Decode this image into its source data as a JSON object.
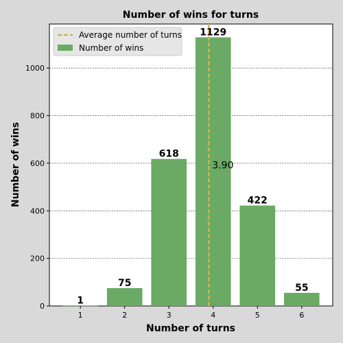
{
  "chart_data": {
    "type": "bar",
    "title": "Number of wins for turns",
    "xlabel": "Number of turns",
    "ylabel": "Number of wins",
    "categories": [
      1,
      2,
      3,
      4,
      5,
      6
    ],
    "values": [
      1,
      75,
      618,
      1129,
      422,
      55
    ],
    "data_labels": [
      "1",
      "75",
      "618",
      "1129",
      "422",
      "55"
    ],
    "ylim": [
      0,
      1185
    ],
    "yticks": [
      0,
      200,
      400,
      600,
      800,
      1000
    ],
    "xlim": [
      0.3,
      6.7
    ],
    "grid": "y, dashed",
    "average_line": {
      "x": 3.9,
      "label": "3.90"
    },
    "legend": {
      "placement": "top-left",
      "entries": [
        "Average number of turns",
        "Number of wins"
      ]
    },
    "colors": {
      "bar": "#6aaa64",
      "average_line": "#c9b458"
    }
  }
}
